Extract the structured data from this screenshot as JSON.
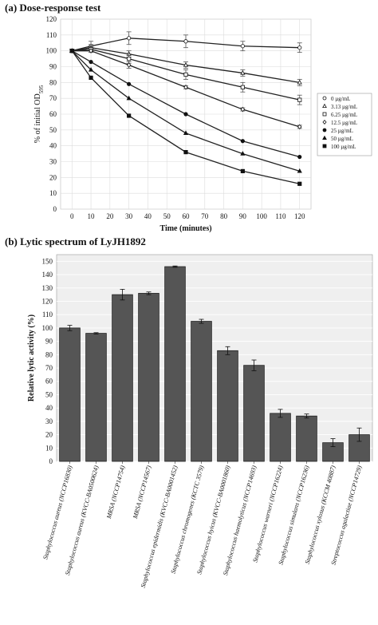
{
  "panel_a_title": "(a) Dose-response test",
  "panel_b_title": "(b) Lytic spectrum of LyJH1892",
  "chart_data": [
    {
      "type": "line",
      "title": "(a) Dose-response test",
      "xlabel": "Time (minutes)",
      "ylabel": "% of initial OD595",
      "ylabel_main": "% of initial OD",
      "ylabel_sub": "595",
      "x": [
        0,
        10,
        30,
        60,
        90,
        120
      ],
      "xticks": [
        0,
        10,
        20,
        30,
        40,
        50,
        60,
        70,
        80,
        90,
        100,
        110,
        120
      ],
      "xlim": [
        -6,
        126
      ],
      "ylim": [
        0,
        120
      ],
      "yticks": [
        0,
        10,
        20,
        30,
        40,
        50,
        60,
        70,
        80,
        90,
        100,
        110,
        120
      ],
      "grid": true,
      "legend_position": "right",
      "series": [
        {
          "name": "0 µg/mL",
          "marker": "open-circle",
          "values": [
            100,
            103,
            108,
            106,
            103,
            102
          ],
          "errors": [
            1,
            3,
            4,
            4,
            3,
            3
          ]
        },
        {
          "name": "3.13 µg/mL",
          "marker": "open-triangle",
          "values": [
            100,
            102,
            98,
            91,
            86,
            80
          ],
          "errors": [
            1,
            2,
            2,
            2,
            2,
            2
          ]
        },
        {
          "name": "6.25 µg/mL",
          "marker": "open-square",
          "values": [
            100,
            101,
            95,
            85,
            77,
            69
          ],
          "errors": [
            1,
            2,
            3,
            3,
            3,
            3
          ]
        },
        {
          "name": "12.5 µg/mL",
          "marker": "open-diamond",
          "values": [
            100,
            100,
            91,
            77,
            63,
            52
          ],
          "errors": [
            1,
            1,
            2,
            1,
            1,
            1
          ]
        },
        {
          "name": "25 µg/mL",
          "marker": "filled-circle",
          "values": [
            100,
            93,
            79,
            60,
            43,
            33
          ],
          "errors": [
            0,
            0,
            0,
            0,
            0,
            0
          ]
        },
        {
          "name": "50 µg/mL",
          "marker": "filled-triangle",
          "values": [
            100,
            88,
            70,
            48,
            35,
            24
          ],
          "errors": [
            0,
            0,
            0,
            0,
            0,
            0
          ]
        },
        {
          "name": "100 µg/mL",
          "marker": "filled-square",
          "values": [
            100,
            83,
            59,
            36,
            24,
            16
          ],
          "errors": [
            0,
            0,
            0,
            0,
            0,
            0
          ]
        }
      ]
    },
    {
      "type": "bar",
      "title": "(b) Lytic spectrum of LyJH1892",
      "xlabel": "",
      "ylabel": "Relative lytic activity (%)",
      "ylim": [
        0,
        155
      ],
      "yticks": [
        0,
        10,
        20,
        30,
        40,
        50,
        60,
        70,
        80,
        90,
        100,
        110,
        120,
        130,
        140,
        150
      ],
      "grid": true,
      "bar_color": "#555555",
      "categories": [
        "Staphylococcus aureus (NCCP16830)",
        "Staphylococcus aureus (KVCC-BA0500624)",
        "MRSA (NCCP14754)",
        "MRSA (NCCP14567)",
        "Staphylococcus epidermidis (KVCC-BA0001452)",
        "Staphylococcus chromogenes (KCTC 3579)",
        "Staphylococcus hyicus (KVCC-BA0001860)",
        "Staphylococcus haemolyticus (NCCP14693)",
        "Staphylococcus warneri (NCCP16224)",
        "Staphylococcus simulans (NCCP16236)",
        "Staphylococcus xylosus (KCCM 40887)",
        "Streptococcus agalactiae (NCCP14729)"
      ],
      "values": [
        100,
        96,
        125,
        126,
        146,
        105,
        83,
        72,
        36,
        34,
        14,
        20
      ],
      "errors": [
        2,
        0.5,
        4,
        1,
        0.5,
        1.5,
        3,
        4,
        3,
        1.5,
        3,
        5
      ]
    }
  ]
}
